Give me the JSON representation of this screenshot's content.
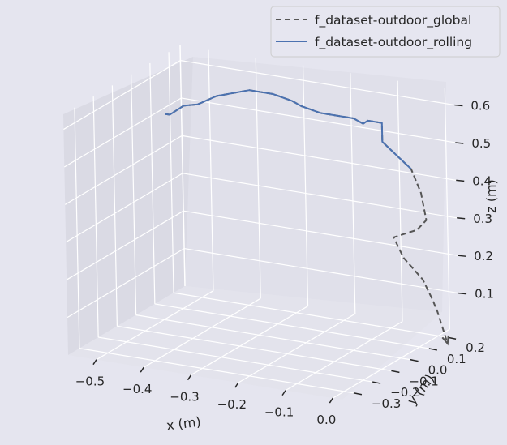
{
  "chart_data": {
    "type": "line",
    "projection": "3d",
    "xlabel": "x (m)",
    "ylabel": "y (m)",
    "zlabel": "z (m)",
    "x_ticks": [
      "−0.5",
      "−0.4",
      "−0.3",
      "−0.2",
      "−0.1",
      "0.0"
    ],
    "y_ticks": [
      "−0.3",
      "−0.2",
      "−0.1",
      "0.0",
      "0.1",
      "0.2"
    ],
    "z_ticks": [
      "0.1",
      "0.2",
      "0.3",
      "0.4",
      "0.5",
      "0.6"
    ],
    "grid": true,
    "legend_position": "top-right",
    "series": [
      {
        "name": "f_dataset-outdoor_global",
        "color": "#555555",
        "linestyle": "dashed",
        "points": [
          [
            -0.51,
            0.05,
            0.53
          ],
          [
            -0.5,
            0.05,
            0.53
          ],
          [
            -0.49,
            0.05,
            0.54
          ],
          [
            -0.47,
            0.05,
            0.56
          ],
          [
            -0.44,
            0.05,
            0.57
          ],
          [
            -0.4,
            0.05,
            0.6
          ],
          [
            -0.33,
            0.05,
            0.63
          ],
          [
            -0.28,
            0.05,
            0.63
          ],
          [
            -0.24,
            0.05,
            0.62
          ],
          [
            -0.22,
            0.05,
            0.61
          ],
          [
            -0.18,
            0.05,
            0.6
          ],
          [
            -0.13,
            0.05,
            0.6
          ],
          [
            -0.11,
            0.05,
            0.6
          ],
          [
            -0.09,
            0.05,
            0.59
          ],
          [
            -0.08,
            0.05,
            0.6
          ],
          [
            -0.07,
            0.05,
            0.6
          ],
          [
            -0.05,
            0.05,
            0.6
          ],
          [
            -0.05,
            0.05,
            0.55
          ],
          [
            -0.03,
            0.05,
            0.53
          ],
          [
            0.01,
            0.05,
            0.49
          ],
          [
            0.03,
            0.05,
            0.43
          ],
          [
            0.04,
            0.05,
            0.36
          ],
          [
            0.02,
            0.05,
            0.33
          ],
          [
            -0.03,
            0.05,
            0.3
          ],
          [
            -0.01,
            0.05,
            0.25
          ],
          [
            0.03,
            0.05,
            0.2
          ],
          [
            0.05,
            0.05,
            0.15
          ],
          [
            0.06,
            0.05,
            0.12
          ],
          [
            0.07,
            0.05,
            0.08
          ],
          [
            0.08,
            0.05,
            0.04
          ]
        ]
      },
      {
        "name": "f_dataset-outdoor_rolling",
        "color": "#4c72b0",
        "linestyle": "solid",
        "points": [
          [
            -0.51,
            0.05,
            0.53
          ],
          [
            -0.5,
            0.05,
            0.53
          ],
          [
            -0.49,
            0.05,
            0.54
          ],
          [
            -0.47,
            0.05,
            0.56
          ],
          [
            -0.44,
            0.05,
            0.57
          ],
          [
            -0.4,
            0.05,
            0.6
          ],
          [
            -0.33,
            0.05,
            0.63
          ],
          [
            -0.28,
            0.05,
            0.63
          ],
          [
            -0.24,
            0.05,
            0.62
          ],
          [
            -0.22,
            0.05,
            0.61
          ],
          [
            -0.18,
            0.05,
            0.6
          ],
          [
            -0.13,
            0.05,
            0.6
          ],
          [
            -0.11,
            0.05,
            0.6
          ],
          [
            -0.09,
            0.05,
            0.59
          ],
          [
            -0.08,
            0.05,
            0.6
          ],
          [
            -0.07,
            0.05,
            0.6
          ],
          [
            -0.05,
            0.05,
            0.6
          ],
          [
            -0.05,
            0.05,
            0.55
          ],
          [
            -0.03,
            0.05,
            0.53
          ],
          [
            0.01,
            0.05,
            0.49
          ]
        ]
      }
    ]
  }
}
